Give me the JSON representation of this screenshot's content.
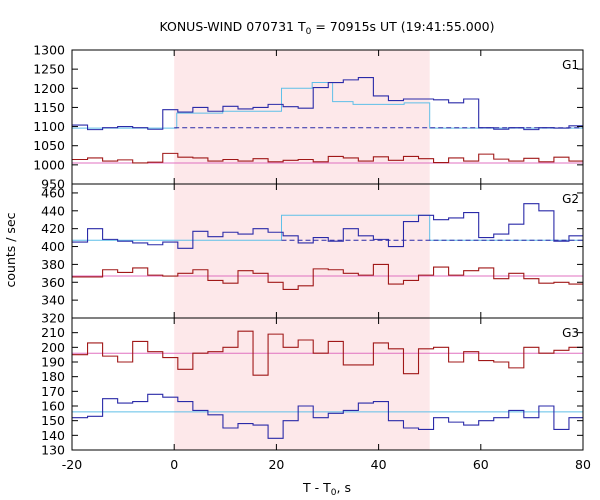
{
  "title_main": "KONUS-WIND 070731 T",
  "title_sub": "0",
  "title_rest": " = 70915s UT (19:41:55.000)",
  "ylabel": "counts / sec",
  "xlabel_main": "T - T",
  "xlabel_sub": "0",
  "xlabel_rest": ", s",
  "colors": {
    "blue": "#2a2aa8",
    "cyan": "#5fbfe8",
    "dark_red": "#a01818",
    "pink": "#e070c0",
    "band": "#fde8ea"
  },
  "chart_data": {
    "type": "line",
    "step": 2.944,
    "x_start": -19.9,
    "x_range": [
      -20,
      80
    ],
    "x_ticks": [
      -20,
      0,
      20,
      40,
      60,
      80
    ],
    "highlight_interval": [
      0,
      50
    ],
    "panels": [
      {
        "label": "G1",
        "y_range": [
          950,
          1300
        ],
        "y_ticks": [
          950,
          1000,
          1050,
          1100,
          1150,
          1200,
          1250,
          1300
        ],
        "series": [
          {
            "name": "",
            "color": "blue",
            "values": [
              1104,
              1092,
              1097,
              1100,
              1097,
              1093,
              1144,
              1138,
              1150,
              1140,
              1153,
              1146,
              1150,
              1158,
              1152,
              1148,
              1202,
              1215,
              1222,
              1228,
              1180,
              1168,
              1172,
              1172,
              1170,
              1162,
              1172,
              1097,
              1093,
              1097,
              1092,
              1097,
              1096,
              1102,
              1099,
              1105,
              1099,
              1097,
              1104,
              1100,
              1103,
              1098,
              1097,
              1093,
              1094,
              1099,
              1098,
              1095,
              1096,
              1096
            ],
            "levels": [
              {
                "x0": -20,
                "x1": 0.5,
                "y": 1096
              },
              {
                "x0": 0.5,
                "x1": 9.5,
                "y": 1135
              },
              {
                "x0": 9.5,
                "x1": 21,
                "y": 1140
              },
              {
                "x0": 21,
                "x1": 27,
                "y": 1200
              },
              {
                "x0": 27,
                "x1": 31,
                "y": 1215
              },
              {
                "x0": 31,
                "x1": 35,
                "y": 1165
              },
              {
                "x0": 35,
                "x1": 45,
                "y": 1158
              },
              {
                "x0": 45,
                "x1": 50,
                "y": 1162
              },
              {
                "x0": 50,
                "x1": 80,
                "y": 1096
              }
            ],
            "baseline": {
              "x0": 0,
              "x1": 80,
              "y": 1097
            }
          },
          {
            "name": "",
            "color": "dark_red",
            "values": [
              1014,
              1018,
              1010,
              1013,
              1005,
              1007,
              1030,
              1020,
              1018,
              1010,
              1014,
              1010,
              1016,
              1008,
              1012,
              1014,
              1008,
              1022,
              1018,
              1010,
              1021,
              1012,
              1022,
              1016,
              1006,
              1018,
              1010,
              1028,
              1015,
              1010,
              1017,
              1008,
              1020,
              1010,
              1014,
              1022,
              1010,
              1015,
              1022,
              1006,
              1016,
              1022,
              1010,
              1008,
              1018,
              1012,
              1020,
              1010,
              1014,
              1040
            ],
            "fit": {
              "x0": -20,
              "x1": 80,
              "y": 1005
            }
          }
        ]
      },
      {
        "label": "G2",
        "y_range": [
          320,
          470
        ],
        "y_ticks": [
          320,
          340,
          360,
          380,
          400,
          420,
          440,
          460
        ],
        "series": [
          {
            "name": "",
            "color": "blue",
            "values": [
              405,
              420,
              408,
              406,
              404,
              402,
              405,
              398,
              417,
              411,
              416,
              414,
              420,
              416,
              412,
              404,
              410,
              406,
              420,
              412,
              408,
              400,
              428,
              435,
              430,
              432,
              438,
              410,
              414,
              425,
              448,
              440,
              406,
              412,
              418,
              406,
              396,
              400,
              404,
              408,
              406,
              414,
              406,
              402,
              400,
              404,
              408,
              402,
              404,
              410
            ],
            "levels": [
              {
                "x0": -20,
                "x1": 21,
                "y": 407
              },
              {
                "x0": 21,
                "x1": 50,
                "y": 435
              },
              {
                "x0": 50,
                "x1": 80,
                "y": 407
              }
            ],
            "baseline": {
              "x0": 21,
              "x1": 80,
              "y": 407
            }
          },
          {
            "name": "",
            "color": "dark_red",
            "values": [
              366,
              366,
              374,
              371,
              376,
              368,
              367,
              370,
              374,
              362,
              359,
              373,
              370,
              360,
              352,
              356,
              375,
              374,
              370,
              368,
              380,
              358,
              362,
              368,
              377,
              368,
              373,
              376,
              364,
              370,
              364,
              359,
              360,
              358,
              370,
              374,
              370,
              364,
              362,
              374,
              368,
              360,
              370,
              364,
              366,
              362,
              368,
              370,
              374,
              366
            ],
            "fit": {
              "x0": -20,
              "x1": 80,
              "y": 367
            }
          }
        ]
      },
      {
        "label": "G3",
        "y_range": [
          130,
          220
        ],
        "y_ticks": [
          130,
          140,
          150,
          160,
          170,
          180,
          190,
          200,
          210
        ],
        "series": [
          {
            "name": "",
            "color": "dark_red",
            "values": [
              195,
              203,
              194,
              190,
              204,
              197,
              193,
              185,
              196,
              197,
              200,
              211,
              181,
              209,
              200,
              205,
              196,
              204,
              188,
              188,
              203,
              199,
              182,
              199,
              200,
              190,
              197,
              191,
              190,
              186,
              200,
              196,
              198,
              200,
              194,
              198,
              190,
              197,
              194,
              200,
              193,
              192,
              196,
              198,
              199,
              187,
              196,
              192,
              196,
              196
            ],
            "fit": {
              "x0": -20,
              "x1": 80,
              "y": 196
            }
          },
          {
            "name": "",
            "color": "blue",
            "values": [
              152,
              153,
              165,
              162,
              163,
              168,
              166,
              163,
              157,
              154,
              145,
              148,
              147,
              138,
              150,
              160,
              152,
              155,
              157,
              162,
              163,
              150,
              145,
              144,
              152,
              149,
              147,
              150,
              152,
              157,
              152,
              160,
              144,
              152,
              151,
              160,
              140,
              152,
              147,
              160,
              156,
              145,
              149,
              155,
              155,
              154,
              152,
              150,
              145,
              172
            ],
            "fit": {
              "x0": -20,
              "x1": 80,
              "y": 156
            }
          }
        ]
      }
    ]
  }
}
